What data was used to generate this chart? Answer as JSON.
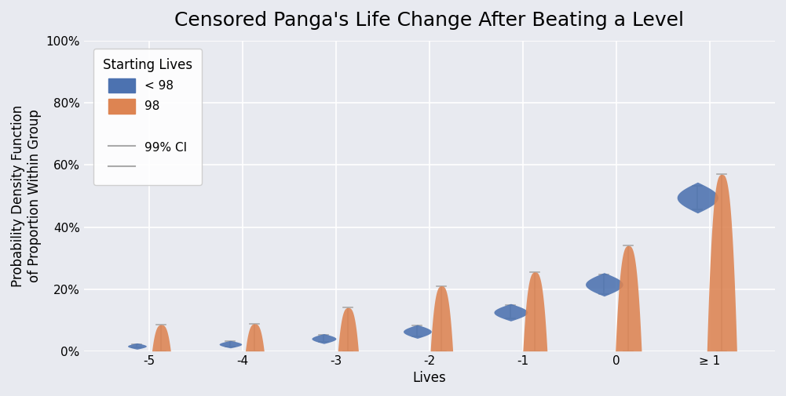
{
  "title": "Censored Panga's Life Change After Beating a Level",
  "xlabel": "Lives",
  "ylabel": "Probability Density Function\nof Proportion Within Group",
  "bg_color": "#e8eaf0",
  "blue_color": "#4c72b0",
  "orange_color": "#dd8452",
  "ci_color": "#aaaaaa",
  "x_labels": [
    "-5",
    "-4",
    "-3",
    "-2",
    "-1",
    "0",
    "≥ 1"
  ],
  "x_positions": [
    -5,
    -4,
    -3,
    -2,
    -1,
    0,
    1
  ],
  "ylim": [
    0.0,
    1.0
  ],
  "yticks": [
    0.0,
    0.2,
    0.4,
    0.6,
    0.8,
    1.0
  ],
  "blue_centers": [
    0.016,
    0.022,
    0.04,
    0.063,
    0.125,
    0.215,
    0.495
  ],
  "blue_ci_low": [
    0.011,
    0.014,
    0.029,
    0.047,
    0.105,
    0.183,
    0.458
  ],
  "blue_ci_high": [
    0.022,
    0.031,
    0.053,
    0.082,
    0.148,
    0.248,
    0.533
  ],
  "blue_half_heights": [
    0.01,
    0.012,
    0.016,
    0.022,
    0.028,
    0.038,
    0.05
  ],
  "blue_half_widths": [
    0.1,
    0.12,
    0.13,
    0.15,
    0.18,
    0.2,
    0.22
  ],
  "orange_ci_top": [
    0.085,
    0.088,
    0.14,
    0.21,
    0.255,
    0.34,
    0.57
  ],
  "orange_ci_bot": [
    0.0,
    0.0,
    0.0,
    0.0,
    0.0,
    0.0,
    0.0
  ],
  "orange_base_half_widths": [
    0.1,
    0.1,
    0.11,
    0.12,
    0.13,
    0.14,
    0.16
  ],
  "orange_peak_y_frac": [
    0.04,
    0.04,
    0.04,
    0.03,
    0.03,
    0.02,
    0.02
  ],
  "legend_title": "Starting Lives",
  "legend_blue_label": "< 98",
  "legend_orange_label": "98",
  "legend_ci_label": "99% CI",
  "title_fontsize": 18,
  "label_fontsize": 12,
  "tick_fontsize": 11
}
